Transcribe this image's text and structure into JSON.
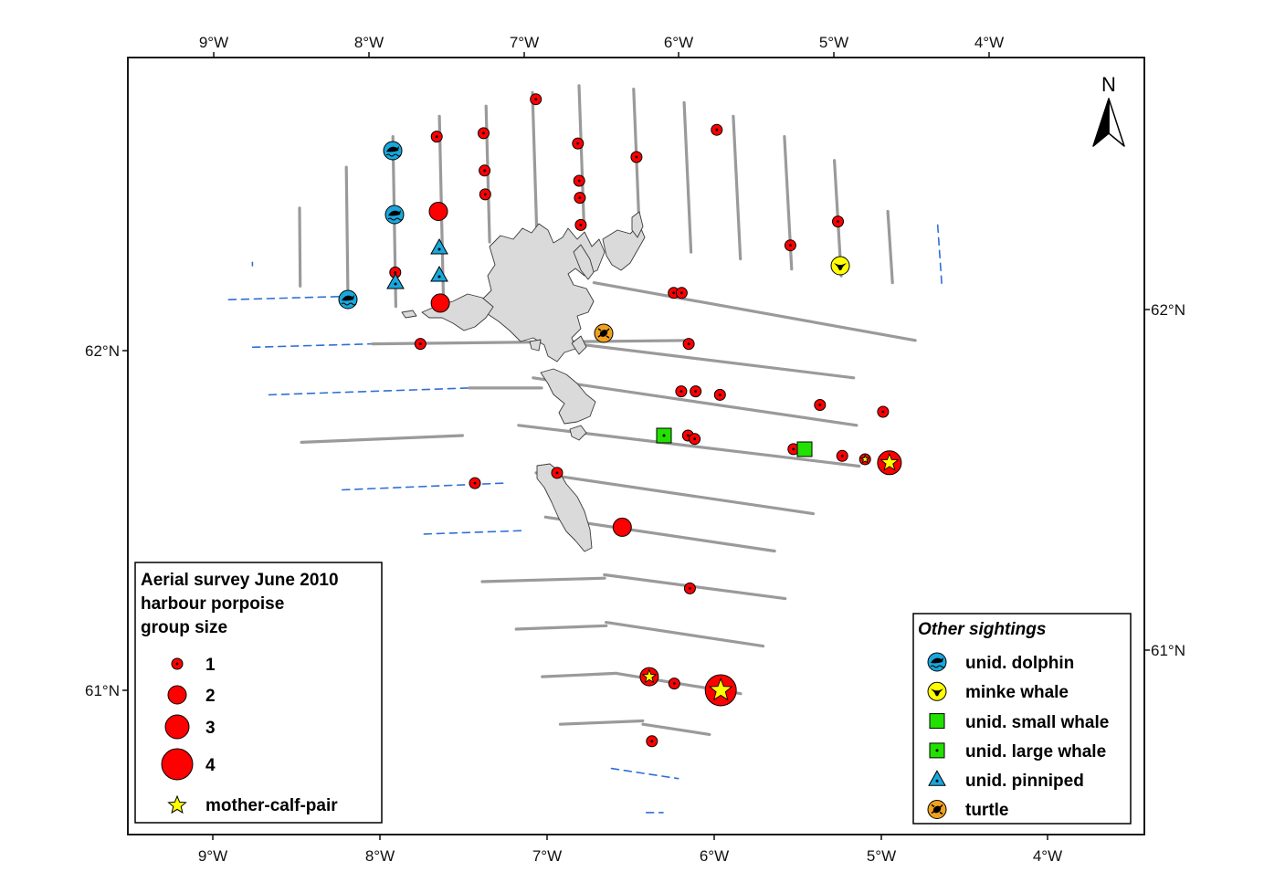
{
  "lon_ticks": [
    "9°W",
    "8°W",
    "7°W",
    "6°W",
    "5°W",
    "4°W"
  ],
  "lat_ticks": [
    "62°N",
    "61°N"
  ],
  "north_label": "N",
  "legend": {
    "title": [
      "Aerial survey June 2010",
      "harbour porpoise",
      "group size"
    ],
    "sizes": [
      "1",
      "2",
      "3",
      "4"
    ],
    "mother_calf": "mother-calf-pair"
  },
  "other_legend": {
    "title": "Other sightings",
    "items": [
      "unid. dolphin",
      "minke whale",
      "unid. small whale",
      "unid. large whale",
      "unid. pinniped",
      "turtle"
    ]
  },
  "colors": {
    "porpoise": "#ff0000",
    "dolphin": "#1aa7dc",
    "minke_whale": "#ffff00",
    "whale": "#22e000",
    "pinniped": "#1aa7dc",
    "turtle": "#f0a21e",
    "star": "#ffff00",
    "transect_survey": "#9a9a9a",
    "transect_offeffort": "#2f6fd8",
    "land": "#dadada"
  },
  "transects": {
    "vertical": [
      {
        "lon": -8.75,
        "lat1": 62.26,
        "lat2": 62.25,
        "effort": "off"
      },
      {
        "lon": -8.45,
        "lat1": 62.42,
        "lat2": 62.19,
        "effort": "on"
      },
      {
        "lon": -8.15,
        "lat1": 62.54,
        "lat2": 62.13,
        "effort": "on"
      },
      {
        "lon": -7.85,
        "lat1": 62.63,
        "lat2": 62.13,
        "effort": "on"
      },
      {
        "lon": -7.55,
        "lat1": 62.69,
        "lat2": 62.13,
        "effort": "on"
      },
      {
        "lon": -7.25,
        "lat1": 62.72,
        "lat2": 62.32,
        "effort": "on"
      },
      {
        "lon": -6.95,
        "lat1": 62.76,
        "lat2": 62.3,
        "effort": "on"
      },
      {
        "lon": -6.65,
        "lat1": 62.78,
        "lat2": 62.37,
        "effort": "on"
      },
      {
        "lon": -6.3,
        "lat1": 62.77,
        "lat2": 62.32,
        "effort": "on"
      },
      {
        "lon": -5.98,
        "lat1": 62.73,
        "lat2": 62.29,
        "effort": "on"
      },
      {
        "lon": -5.67,
        "lat1": 62.69,
        "lat2": 62.27,
        "effort": "on"
      },
      {
        "lon": -5.35,
        "lat1": 62.63,
        "lat2": 62.24,
        "effort": "on"
      },
      {
        "lon": -5.04,
        "lat1": 62.56,
        "lat2": 62.22,
        "effort": "on"
      },
      {
        "lon": -4.72,
        "lat1": 62.41,
        "lat2": 62.2,
        "effort": "on"
      },
      {
        "lon": -4.41,
        "lat1": 62.37,
        "lat2": 62.19,
        "effort": "off"
      }
    ],
    "diagonal": [
      {
        "lon1": -8.9,
        "lat1": 62.15,
        "lon2": -8.15,
        "lat2": 62.16,
        "effort": "off"
      },
      {
        "lon1": -6.6,
        "lat1": 62.2,
        "lon2": -4.6,
        "lat2": 62.03,
        "effort": "on"
      },
      {
        "lon1": -8.75,
        "lat1": 62.01,
        "lon2": -8.0,
        "lat2": 62.02,
        "effort": "off"
      },
      {
        "lon1": -8.0,
        "lat1": 62.02,
        "lon2": -6.0,
        "lat2": 62.03,
        "effort": "on"
      },
      {
        "lon1": -6.9,
        "lat1": 62.03,
        "lon2": -5.0,
        "lat2": 61.92,
        "effort": "on"
      },
      {
        "lon1": -8.65,
        "lat1": 61.87,
        "lon2": -7.4,
        "lat2": 61.89,
        "effort": "off"
      },
      {
        "lon1": -7.4,
        "lat1": 61.89,
        "lon2": -6.95,
        "lat2": 61.89,
        "effort": "on"
      },
      {
        "lon1": -7.0,
        "lat1": 61.92,
        "lon2": -5.0,
        "lat2": 61.78,
        "effort": "on"
      },
      {
        "lon1": -8.45,
        "lat1": 61.73,
        "lon2": -7.45,
        "lat2": 61.75,
        "effort": "on"
      },
      {
        "lon1": -7.1,
        "lat1": 61.78,
        "lon2": -5.0,
        "lat2": 61.66,
        "effort": "on"
      },
      {
        "lon1": -8.2,
        "lat1": 61.59,
        "lon2": -7.2,
        "lat2": 61.61,
        "effort": "off"
      },
      {
        "lon1": -7.0,
        "lat1": 61.64,
        "lon2": -5.3,
        "lat2": 61.52,
        "effort": "on"
      },
      {
        "lon1": -7.7,
        "lat1": 61.46,
        "lon2": -7.1,
        "lat2": 61.47,
        "effort": "off"
      },
      {
        "lon1": -6.95,
        "lat1": 61.51,
        "lon2": -5.55,
        "lat2": 61.41,
        "effort": "on"
      },
      {
        "lon1": -7.35,
        "lat1": 61.32,
        "lon2": -6.6,
        "lat2": 61.33,
        "effort": "on"
      },
      {
        "lon1": -6.6,
        "lat1": 61.34,
        "lon2": -5.5,
        "lat2": 61.27,
        "effort": "on"
      },
      {
        "lon1": -7.15,
        "lat1": 61.18,
        "lon2": -6.6,
        "lat2": 61.19,
        "effort": "on"
      },
      {
        "lon1": -6.6,
        "lat1": 61.2,
        "lon2": -5.65,
        "lat2": 61.13,
        "effort": "on"
      },
      {
        "lon1": -7.0,
        "lat1": 61.04,
        "lon2": -6.55,
        "lat2": 61.05,
        "effort": "on"
      },
      {
        "lon1": -6.55,
        "lat1": 61.05,
        "lon2": -5.8,
        "lat2": 60.99,
        "effort": "on"
      },
      {
        "lon1": -6.9,
        "lat1": 60.9,
        "lon2": -6.4,
        "lat2": 60.91,
        "effort": "on"
      },
      {
        "lon1": -6.4,
        "lat1": 60.9,
        "lon2": -6.0,
        "lat2": 60.87,
        "effort": "on"
      },
      {
        "lon1": -6.6,
        "lat1": 60.77,
        "lon2": -6.2,
        "lat2": 60.74,
        "effort": "off"
      },
      {
        "lon1": -6.4,
        "lat1": 60.64,
        "lon2": -6.3,
        "lat2": 60.64,
        "effort": "off"
      }
    ]
  },
  "sightings": {
    "porpoises": [
      {
        "lon": -6.93,
        "lat": 62.74,
        "size": 1
      },
      {
        "lon": -7.27,
        "lat": 62.64,
        "size": 1
      },
      {
        "lon": -7.57,
        "lat": 62.63,
        "size": 1
      },
      {
        "lon": -6.67,
        "lat": 62.61,
        "size": 1
      },
      {
        "lon": -6.3,
        "lat": 62.57,
        "size": 1
      },
      {
        "lon": -5.78,
        "lat": 62.65,
        "size": 1
      },
      {
        "lon": -7.27,
        "lat": 62.53,
        "size": 1
      },
      {
        "lon": -6.67,
        "lat": 62.5,
        "size": 1
      },
      {
        "lon": -7.27,
        "lat": 62.46,
        "size": 1
      },
      {
        "lon": -6.67,
        "lat": 62.45,
        "size": 1
      },
      {
        "lon": -7.57,
        "lat": 62.41,
        "size": 2
      },
      {
        "lon": -6.67,
        "lat": 62.37,
        "size": 1
      },
      {
        "lon": -5.04,
        "lat": 62.38,
        "size": 1
      },
      {
        "lon": -5.35,
        "lat": 62.31,
        "size": 1
      },
      {
        "lon": -7.85,
        "lat": 62.23,
        "size": 1
      },
      {
        "lon": -6.1,
        "lat": 62.17,
        "size": 1
      },
      {
        "lon": -6.05,
        "lat": 62.17,
        "size": 1
      },
      {
        "lon": -7.57,
        "lat": 62.14,
        "size": 2
      },
      {
        "lon": -7.7,
        "lat": 62.02,
        "size": 1
      },
      {
        "lon": -6.02,
        "lat": 62.02,
        "size": 1
      },
      {
        "lon": -6.08,
        "lat": 61.88,
        "size": 1
      },
      {
        "lon": -5.99,
        "lat": 61.88,
        "size": 1
      },
      {
        "lon": -5.84,
        "lat": 61.87,
        "size": 1
      },
      {
        "lon": -5.22,
        "lat": 61.84,
        "size": 1
      },
      {
        "lon": -4.83,
        "lat": 61.82,
        "size": 1
      },
      {
        "lon": -6.05,
        "lat": 61.75,
        "size": 1
      },
      {
        "lon": -6.01,
        "lat": 61.74,
        "size": 1
      },
      {
        "lon": -5.4,
        "lat": 61.71,
        "size": 1
      },
      {
        "lon": -5.1,
        "lat": 61.69,
        "size": 1
      },
      {
        "lon": -4.96,
        "lat": 61.68,
        "size": 1,
        "mother_calf": true
      },
      {
        "lon": -4.81,
        "lat": 61.67,
        "size": 3,
        "mother_calf": true
      },
      {
        "lon": -6.87,
        "lat": 61.64,
        "size": 1
      },
      {
        "lon": -7.38,
        "lat": 61.61,
        "size": 1
      },
      {
        "lon": -6.48,
        "lat": 61.48,
        "size": 2
      },
      {
        "lon": -6.08,
        "lat": 61.3,
        "size": 1
      },
      {
        "lon": -6.35,
        "lat": 61.04,
        "size": 2,
        "mother_calf": true
      },
      {
        "lon": -6.2,
        "lat": 61.02,
        "size": 1
      },
      {
        "lon": -5.92,
        "lat": 61.0,
        "size": 4,
        "mother_calf": true
      },
      {
        "lon": -6.35,
        "lat": 60.85,
        "size": 1
      }
    ],
    "others": [
      {
        "type": "dolphin",
        "lon": -7.85,
        "lat": 62.59
      },
      {
        "type": "dolphin",
        "lon": -7.85,
        "lat": 62.4
      },
      {
        "type": "dolphin",
        "lon": -8.15,
        "lat": 62.15
      },
      {
        "type": "pinniped",
        "lon": -7.57,
        "lat": 62.3
      },
      {
        "type": "pinniped",
        "lon": -7.57,
        "lat": 62.22
      },
      {
        "type": "pinniped",
        "lon": -7.85,
        "lat": 62.2
      },
      {
        "type": "minke",
        "lon": -5.04,
        "lat": 62.25
      },
      {
        "type": "turtle",
        "lon": -6.55,
        "lat": 62.05
      },
      {
        "type": "large_whale",
        "lon": -6.2,
        "lat": 61.75
      },
      {
        "type": "small_whale",
        "lon": -5.33,
        "lat": 61.71
      }
    ]
  }
}
